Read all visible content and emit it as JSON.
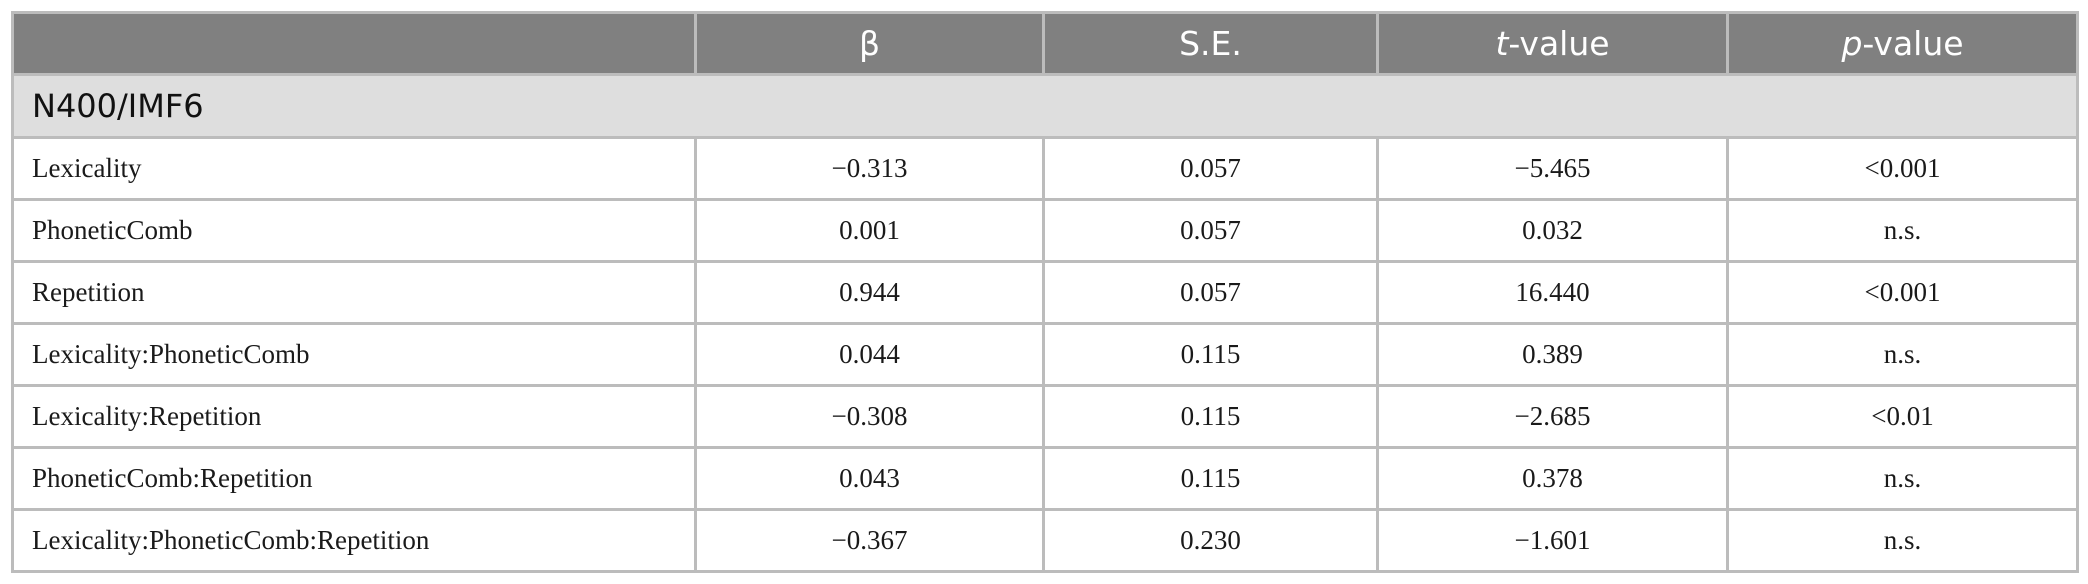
{
  "header": {
    "beta": "β",
    "se": "S.E.",
    "t_italic": "t",
    "t_rest": "-value",
    "p_italic": "p",
    "p_rest": "-value"
  },
  "section": {
    "title": "N400/IMF6"
  },
  "rows": [
    {
      "effect": "Lexicality",
      "beta": "−0.313",
      "se": "0.057",
      "t": "−5.465",
      "p": "<0.001"
    },
    {
      "effect": "PhoneticComb",
      "beta": "0.001",
      "se": "0.057",
      "t": "0.032",
      "p": "n.s."
    },
    {
      "effect": "Repetition",
      "beta": "0.944",
      "se": "0.057",
      "t": "16.440",
      "p": "<0.001"
    },
    {
      "effect": "Lexicality:PhoneticComb",
      "beta": "0.044",
      "se": "0.115",
      "t": "0.389",
      "p": "n.s."
    },
    {
      "effect": "Lexicality:Repetition",
      "beta": "−0.308",
      "se": "0.115",
      "t": "−2.685",
      "p": "<0.01"
    },
    {
      "effect": "PhoneticComb:Repetition",
      "beta": "0.043",
      "se": "0.115",
      "t": "0.378",
      "p": "n.s."
    },
    {
      "effect": "Lexicality:PhoneticComb:Repetition",
      "beta": "−0.367",
      "se": "0.230",
      "t": "−1.601",
      "p": "n.s."
    }
  ],
  "colors": {
    "header_bg": "#808080",
    "section_bg": "#dedede",
    "border": "#bcbcbc"
  }
}
